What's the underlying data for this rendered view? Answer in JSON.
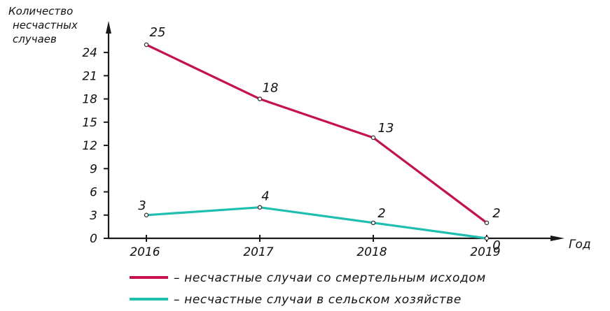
{
  "chart_data": {
    "type": "line",
    "title": "",
    "ylabel_lines": [
      "Количество",
      "несчастных",
      "случаев"
    ],
    "xlabel": "Год",
    "categories": [
      "2016",
      "2017",
      "2018",
      "2019"
    ],
    "y_ticks": [
      "0",
      "3",
      "6",
      "9",
      "12",
      "15",
      "18",
      "21",
      "24"
    ],
    "ylim": [
      0,
      27
    ],
    "grid": false,
    "legend_position": "bottom",
    "series": [
      {
        "name": "– несчастные случаи со смертельным исходом",
        "color": "#c8104f",
        "values": [
          25,
          18,
          13,
          2
        ],
        "labels": [
          "25",
          "18",
          "13",
          "2"
        ]
      },
      {
        "name": "– несчастные случаи в сельском хозяйстве",
        "color": "#1fbfb0",
        "values": [
          3,
          4,
          2,
          0
        ],
        "labels": [
          "3",
          "4",
          "2",
          "0"
        ]
      }
    ]
  }
}
